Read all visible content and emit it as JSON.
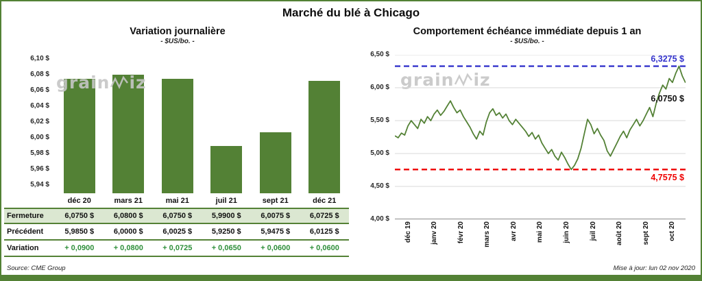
{
  "page": {
    "title": "Marché du blé à Chicago",
    "source": "Source: CME Group",
    "updated": "Mise à jour: lun 02 nov 2020",
    "watermark": "grainwiz"
  },
  "colors": {
    "green": "#538135",
    "light_green_row": "#dbe7d1",
    "variation_green": "#2e8f3a",
    "blue": "#3333cc",
    "red": "#ee0000"
  },
  "chart_data": [
    {
      "type": "bar",
      "title": "Variation journalière",
      "subtitle": "- $US/bo. -",
      "categories": [
        "déc 20",
        "mars 21",
        "mai 21",
        "juil 21",
        "sept 21",
        "déc 21"
      ],
      "values": [
        6.075,
        6.08,
        6.075,
        5.99,
        6.0075,
        6.0725
      ],
      "bar_color": "#538135",
      "ylabel": "$US/bo.",
      "axis_range": [
        5.94,
        6.1
      ],
      "plot_range": [
        5.93,
        6.105
      ],
      "grid": false,
      "yticks": [
        {
          "value": 6.1,
          "label": "6,10 $"
        },
        {
          "value": 6.08,
          "label": "6,08 $"
        },
        {
          "value": 6.06,
          "label": "6,06 $"
        },
        {
          "value": 6.04,
          "label": "6,04 $"
        },
        {
          "value": 6.02,
          "label": "6,02 $"
        },
        {
          "value": 6.0,
          "label": "6,00 $"
        },
        {
          "value": 5.98,
          "label": "5,98 $"
        },
        {
          "value": 5.96,
          "label": "5,96 $"
        },
        {
          "value": 5.94,
          "label": "5,94 $"
        }
      ]
    },
    {
      "type": "line",
      "title": "Comportement échéance immédiate depuis 1 an",
      "subtitle": "- $US/bo. -",
      "line_color": "#538135",
      "ylim": [
        4.0,
        6.5
      ],
      "grid": true,
      "yticks": [
        {
          "value": 6.5,
          "label": "6,50 $"
        },
        {
          "value": 6.0,
          "label": "6,00 $"
        },
        {
          "value": 5.5,
          "label": "5,50 $"
        },
        {
          "value": 5.0,
          "label": "5,00 $"
        },
        {
          "value": 4.5,
          "label": "4,50 $"
        },
        {
          "value": 4.0,
          "label": "4,00 $"
        }
      ],
      "x_labels": [
        "déc 19",
        "janv 20",
        "févr 20",
        "mars 20",
        "avr 20",
        "mai 20",
        "juin 20",
        "juil 20",
        "août 20",
        "sept 20",
        "oct 20"
      ],
      "high_line": {
        "value": 6.3275,
        "label": "6,3275 $",
        "color": "#3333cc"
      },
      "low_line": {
        "value": 4.7575,
        "label": "4,7575 $",
        "color": "#ee0000"
      },
      "last_label": {
        "value": 6.075,
        "label": "6,0750 $"
      },
      "values": [
        5.27,
        5.24,
        5.31,
        5.28,
        5.42,
        5.5,
        5.44,
        5.38,
        5.52,
        5.46,
        5.56,
        5.5,
        5.6,
        5.66,
        5.58,
        5.64,
        5.72,
        5.8,
        5.7,
        5.62,
        5.66,
        5.56,
        5.48,
        5.4,
        5.3,
        5.22,
        5.34,
        5.28,
        5.48,
        5.62,
        5.68,
        5.58,
        5.62,
        5.54,
        5.6,
        5.5,
        5.44,
        5.52,
        5.46,
        5.4,
        5.34,
        5.26,
        5.32,
        5.22,
        5.28,
        5.16,
        5.08,
        5.0,
        5.06,
        4.96,
        4.9,
        5.02,
        4.94,
        4.84,
        4.7575,
        4.82,
        4.92,
        5.08,
        5.3,
        5.52,
        5.44,
        5.3,
        5.38,
        5.28,
        5.2,
        5.04,
        4.96,
        5.06,
        5.16,
        5.26,
        5.34,
        5.24,
        5.36,
        5.44,
        5.52,
        5.42,
        5.5,
        5.6,
        5.7,
        5.56,
        5.76,
        5.92,
        6.04,
        5.98,
        6.14,
        6.08,
        6.22,
        6.3275,
        6.18,
        6.075
      ]
    }
  ],
  "table": {
    "rows": [
      {
        "label": "Fermeture",
        "values": [
          "6,0750 $",
          "6,0800 $",
          "6,0750 $",
          "5,9900 $",
          "6,0075 $",
          "6,0725 $"
        ]
      },
      {
        "label": "Précédent",
        "values": [
          "5,9850 $",
          "6,0000 $",
          "6,0025 $",
          "5,9250 $",
          "5,9475 $",
          "6,0125 $"
        ]
      },
      {
        "label": "Variation",
        "values": [
          "+ 0,0900",
          "+ 0,0800",
          "+ 0,0725",
          "+ 0,0650",
          "+ 0,0600",
          "+ 0,0600"
        ]
      }
    ]
  }
}
